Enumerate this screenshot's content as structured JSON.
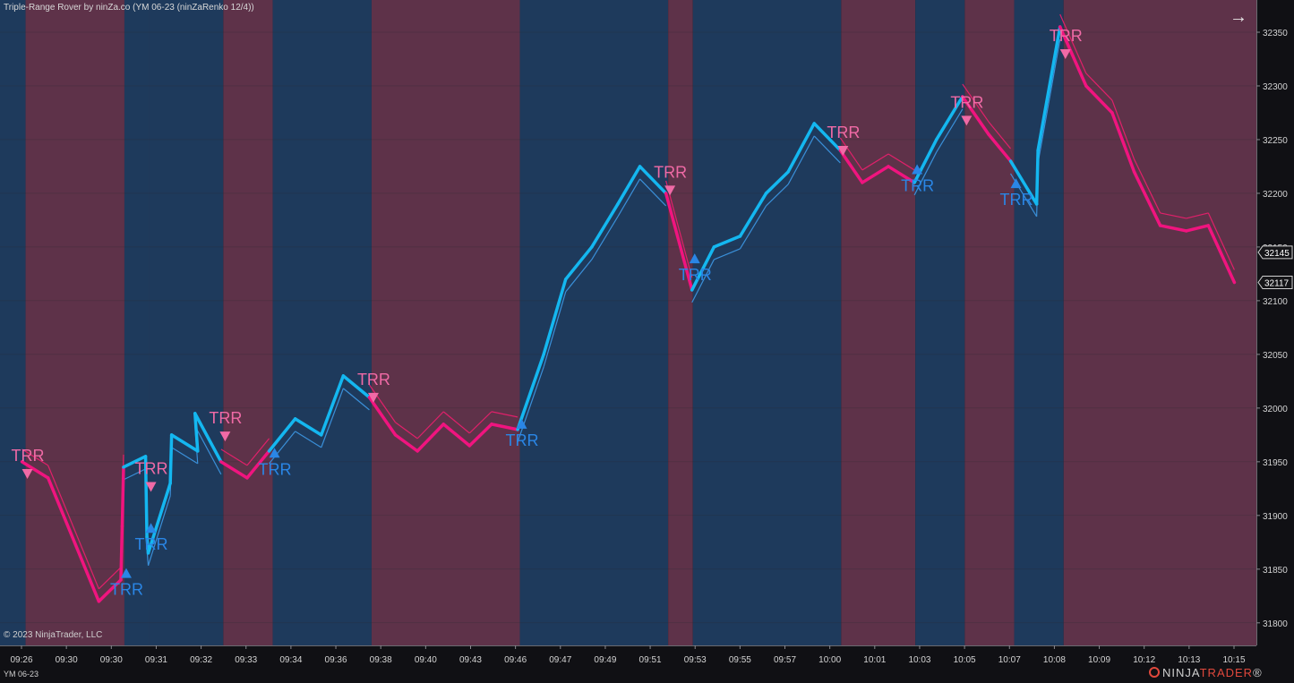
{
  "title": "Triple-Range Rover by ninZa.co (YM 06-23 (ninZaRenko 12/4))",
  "copyright": "© 2023 NinjaTrader, LLC",
  "instrument": "YM 06-23",
  "logo": {
    "text_a": "NINJA",
    "text_b": "TRADER",
    "reg": "®"
  },
  "icons": {
    "expand": "right-arrow-icon",
    "logo": "ninjatrader-logo-icon"
  },
  "colors": {
    "background": "#101014",
    "bull_zone": "#1e3a5c",
    "bear_zone": "#5e3249",
    "bull_line": "#14b7f0",
    "bull_trail": "#3a8fd8",
    "bear_line": "#f0147f",
    "bear_trail": "#e0206a",
    "signal_up": "#2a86e6",
    "signal_down": "#f06aa6",
    "grid": "#2a2a30",
    "axis_text": "#d4d4d4"
  },
  "chart_data": {
    "type": "line",
    "x_axis": {
      "tick_labels": [
        "09:26",
        "09:30",
        "09:30",
        "09:31",
        "09:32",
        "09:33",
        "09:34",
        "09:36",
        "09:38",
        "09:40",
        "09:43",
        "09:46",
        "09:47",
        "09:49",
        "09:51",
        "09:53",
        "09:55",
        "09:57",
        "10:00",
        "10:01",
        "10:03",
        "10:05",
        "10:07",
        "10:08",
        "10:09",
        "10:12",
        "10:13",
        "10:15"
      ]
    },
    "y_axis": {
      "ticks": [
        31800,
        31850,
        31900,
        31950,
        32000,
        32050,
        32100,
        32150,
        32200,
        32250,
        32300,
        32350
      ],
      "ylim": [
        31779,
        32380
      ],
      "price_markers": [
        32145,
        32117
      ]
    },
    "zones": [
      {
        "trend": "bull",
        "from": "09:26",
        "to": "09:26"
      },
      {
        "trend": "bear",
        "from": "09:26",
        "to": "09:30"
      },
      {
        "trend": "bull",
        "from": "09:30",
        "to": "09:31"
      },
      {
        "trend": "bear",
        "from": "09:31",
        "to": "09:31"
      },
      {
        "trend": "bull",
        "from": "09:31",
        "to": "09:34"
      },
      {
        "trend": "bear",
        "from": "09:34",
        "to": "09:36"
      },
      {
        "trend": "bull",
        "from": "09:36",
        "to": "09:40"
      },
      {
        "trend": "bear",
        "from": "09:40",
        "to": "09:46"
      },
      {
        "trend": "bull",
        "from": "09:46",
        "to": "09:52"
      },
      {
        "trend": "bear",
        "from": "09:52",
        "to": "09:53"
      },
      {
        "trend": "bull",
        "from": "09:53",
        "to": "09:59"
      },
      {
        "trend": "bear",
        "from": "09:59",
        "to": "10:02"
      },
      {
        "trend": "bull",
        "from": "10:02",
        "to": "10:04"
      },
      {
        "trend": "bear",
        "from": "10:04",
        "to": "10:06"
      },
      {
        "trend": "bull",
        "from": "10:06",
        "to": "10:08"
      },
      {
        "trend": "bear",
        "from": "10:08",
        "to": "10:15"
      }
    ],
    "price_path": [
      {
        "t": "09:26",
        "v": 31950
      },
      {
        "t": "09:27",
        "v": 31935
      },
      {
        "t": "09:29",
        "v": 31820
      },
      {
        "t": "09:30",
        "v": 31840
      },
      {
        "t": "09:30",
        "v": 31890
      },
      {
        "t": "09:30",
        "v": 31945
      },
      {
        "t": "09:31",
        "v": 31955
      },
      {
        "t": "09:31",
        "v": 31880
      },
      {
        "t": "09:31",
        "v": 31865
      },
      {
        "t": "09:32",
        "v": 31930
      },
      {
        "t": "09:32",
        "v": 31975
      },
      {
        "t": "09:33",
        "v": 31960
      },
      {
        "t": "09:33",
        "v": 31995
      },
      {
        "t": "09:34",
        "v": 31950
      },
      {
        "t": "09:35",
        "v": 31935
      },
      {
        "t": "09:36",
        "v": 31960
      },
      {
        "t": "09:37",
        "v": 31990
      },
      {
        "t": "09:38",
        "v": 31975
      },
      {
        "t": "09:39",
        "v": 32030
      },
      {
        "t": "09:40",
        "v": 32010
      },
      {
        "t": "09:41",
        "v": 31975
      },
      {
        "t": "09:42",
        "v": 31960
      },
      {
        "t": "09:43",
        "v": 31985
      },
      {
        "t": "09:44",
        "v": 31965
      },
      {
        "t": "09:45",
        "v": 31985
      },
      {
        "t": "09:46",
        "v": 31980
      },
      {
        "t": "09:47",
        "v": 32050
      },
      {
        "t": "09:48",
        "v": 32120
      },
      {
        "t": "09:49",
        "v": 32150
      },
      {
        "t": "09:50",
        "v": 32190
      },
      {
        "t": "09:51",
        "v": 32225
      },
      {
        "t": "09:52",
        "v": 32200
      },
      {
        "t": "09:53",
        "v": 32110
      },
      {
        "t": "09:54",
        "v": 32150
      },
      {
        "t": "09:55",
        "v": 32160
      },
      {
        "t": "09:56",
        "v": 32200
      },
      {
        "t": "09:57",
        "v": 32220
      },
      {
        "t": "09:58",
        "v": 32265
      },
      {
        "t": "09:59",
        "v": 32240
      },
      {
        "t": "10:00",
        "v": 32210
      },
      {
        "t": "10:01",
        "v": 32225
      },
      {
        "t": "10:02",
        "v": 32210
      },
      {
        "t": "10:03",
        "v": 32250
      },
      {
        "t": "10:04",
        "v": 32290
      },
      {
        "t": "10:05",
        "v": 32255
      },
      {
        "t": "10:06",
        "v": 32230
      },
      {
        "t": "10:07",
        "v": 32190
      },
      {
        "t": "10:07",
        "v": 32240
      },
      {
        "t": "10:08",
        "v": 32355
      },
      {
        "t": "10:09",
        "v": 32300
      },
      {
        "t": "10:10",
        "v": 32275
      },
      {
        "t": "10:11",
        "v": 32220
      },
      {
        "t": "10:12",
        "v": 32170
      },
      {
        "t": "10:13",
        "v": 32165
      },
      {
        "t": "10:14",
        "v": 32170
      },
      {
        "t": "10:15",
        "v": 32117
      }
    ],
    "signals": [
      {
        "dir": "down",
        "label": "TRR",
        "t": "09:26",
        "v": 31939
      },
      {
        "dir": "up",
        "label": "TRR",
        "t": "09:30",
        "v": 31846
      },
      {
        "dir": "down",
        "label": "TRR",
        "t": "09:31",
        "v": 31927
      },
      {
        "dir": "up",
        "label": "TRR",
        "t": "09:31",
        "v": 31888
      },
      {
        "dir": "down",
        "label": "TRR",
        "t": "09:34",
        "v": 31974
      },
      {
        "dir": "up",
        "label": "TRR",
        "t": "09:36",
        "v": 31958
      },
      {
        "dir": "down",
        "label": "TRR",
        "t": "09:40",
        "v": 32010
      },
      {
        "dir": "up",
        "label": "TRR",
        "t": "09:46",
        "v": 31985
      },
      {
        "dir": "down",
        "label": "TRR",
        "t": "09:52",
        "v": 32203
      },
      {
        "dir": "up",
        "label": "TRR",
        "t": "09:53",
        "v": 32139
      },
      {
        "dir": "down",
        "label": "TRR",
        "t": "09:59",
        "v": 32240
      },
      {
        "dir": "up",
        "label": "TRR",
        "t": "10:02",
        "v": 32222
      },
      {
        "dir": "down",
        "label": "TRR",
        "t": "10:04",
        "v": 32268
      },
      {
        "dir": "up",
        "label": "TRR",
        "t": "10:06",
        "v": 32209
      },
      {
        "dir": "down",
        "label": "TRR",
        "t": "10:08",
        "v": 32330
      }
    ]
  }
}
